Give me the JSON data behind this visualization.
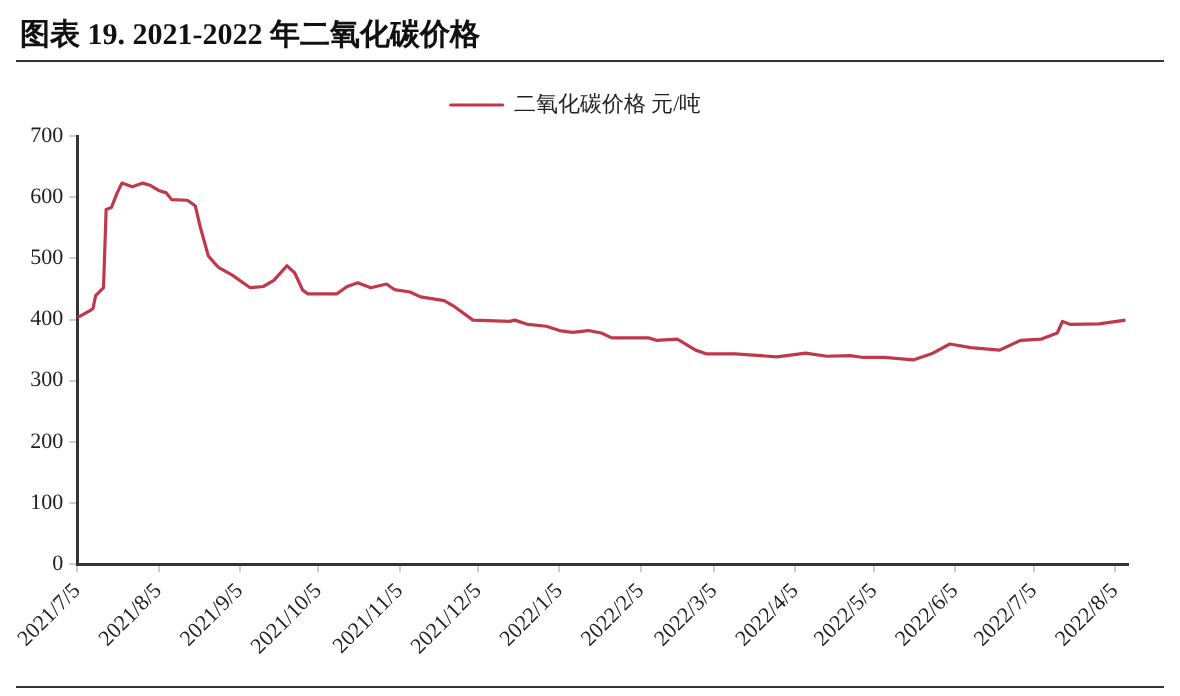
{
  "chart_data": {
    "type": "line",
    "title": "图表 19. 2021-2022 年二氧化碳价格",
    "legend": "top",
    "x": [
      "2021-07-05",
      "2021-07-10",
      "2021-07-11",
      "2021-07-12",
      "2021-07-15",
      "2021-07-16",
      "2021-07-18",
      "2021-07-20",
      "2021-07-22",
      "2021-07-26",
      "2021-07-30",
      "2021-08-02",
      "2021-08-05",
      "2021-08-08",
      "2021-08-10",
      "2021-08-16",
      "2021-08-19",
      "2021-08-21",
      "2021-08-24",
      "2021-08-26",
      "2021-08-28",
      "2021-09-02",
      "2021-09-09",
      "2021-09-14",
      "2021-09-18",
      "2021-09-23",
      "2021-09-26",
      "2021-09-29",
      "2021-10-01",
      "2021-10-12",
      "2021-10-16",
      "2021-10-20",
      "2021-10-25",
      "2021-10-31",
      "2021-11-03",
      "2021-11-09",
      "2021-11-13",
      "2021-11-22",
      "2021-11-26",
      "2021-12-03",
      "2021-12-17",
      "2021-12-19",
      "2021-12-24",
      "2021-12-31",
      "2022-01-05",
      "2022-01-10",
      "2022-01-16",
      "2022-01-21",
      "2022-01-25",
      "2022-02-08",
      "2022-02-11",
      "2022-02-19",
      "2022-02-26",
      "2022-03-02",
      "2022-03-13",
      "2022-03-29",
      "2022-04-09",
      "2022-04-17",
      "2022-04-26",
      "2022-05-01",
      "2022-05-09",
      "2022-05-20",
      "2022-05-27",
      "2022-06-03",
      "2022-06-11",
      "2022-06-22",
      "2022-06-30",
      "2022-07-08",
      "2022-07-14",
      "2022-07-16",
      "2022-07-19",
      "2022-07-30",
      "2022-08-09"
    ],
    "series": [
      {
        "name": "二氧化碳价格 元/吨",
        "color": "#c0394b",
        "values": [
          403,
          415,
          418,
          439,
          452,
          580,
          583,
          605,
          623,
          617,
          623,
          619,
          611,
          607,
          596,
          595,
          586,
          550,
          504,
          494,
          485,
          473,
          452,
          454,
          464,
          488,
          476,
          448,
          442,
          442,
          454,
          460,
          452,
          458,
          449,
          445,
          437,
          431,
          421,
          399,
          397,
          399,
          392,
          389,
          382,
          379,
          382,
          378,
          370,
          370,
          366,
          368,
          350,
          344,
          344,
          339,
          345,
          340,
          341,
          338,
          338,
          334,
          344,
          360,
          354,
          350,
          366,
          368,
          378,
          397,
          392,
          393,
          399
        ]
      }
    ],
    "xlim": [
      "2021-07-05",
      "2022-08-10"
    ],
    "xticks": [
      {
        "value": "2021-07-05",
        "label": "2021/7/5"
      },
      {
        "value": "2021-08-05",
        "label": "2021/8/5"
      },
      {
        "value": "2021-09-05",
        "label": "2021/9/5"
      },
      {
        "value": "2021-10-05",
        "label": "2021/10/5"
      },
      {
        "value": "2021-11-05",
        "label": "2021/11/5"
      },
      {
        "value": "2021-12-05",
        "label": "2021/12/5"
      },
      {
        "value": "2022-01-05",
        "label": "2022/1/5"
      },
      {
        "value": "2022-02-05",
        "label": "2022/2/5"
      },
      {
        "value": "2022-03-05",
        "label": "2022/3/5"
      },
      {
        "value": "2022-04-05",
        "label": "2022/4/5"
      },
      {
        "value": "2022-05-05",
        "label": "2022/5/5"
      },
      {
        "value": "2022-06-05",
        "label": "2022/6/5"
      },
      {
        "value": "2022-07-05",
        "label": "2022/7/5"
      },
      {
        "value": "2022-08-05",
        "label": "2022/8/5"
      }
    ],
    "ylim": [
      0,
      700
    ],
    "yticks": [
      0,
      100,
      200,
      300,
      400,
      500,
      600,
      700
    ],
    "marker": "none",
    "line_style": "solid"
  }
}
